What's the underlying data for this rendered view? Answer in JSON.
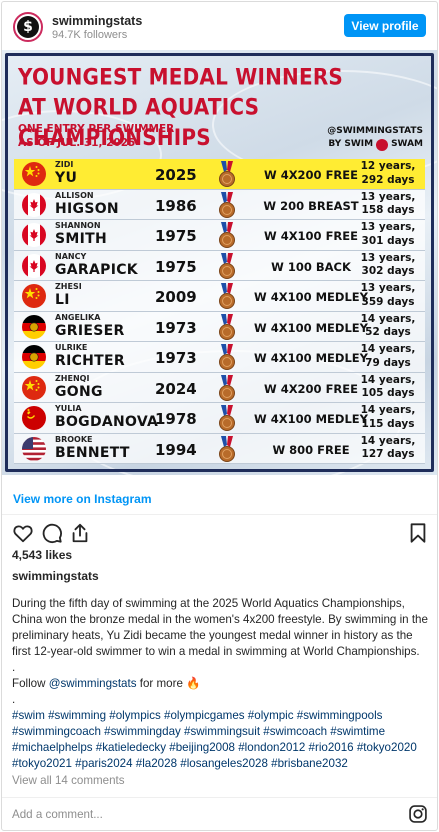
{
  "header": {
    "username": "swimmingstats",
    "followers": "94.7K followers",
    "view_profile": "View profile",
    "avatar_letter": "$"
  },
  "infographic": {
    "title_line1": "YOUNGEST MEDAL WINNERS",
    "title_line2": "AT WORLD AQUATICS CHAMPIONSHIPS",
    "subtitle_line1": "ONE ENTRY PER SWIMMER",
    "subtitle_line2": "AS OF JUL. 31, 2025",
    "brand_handle": "@SWIMMINGSTATS",
    "brand_by": "BY SWIM",
    "brand_swam": "SWAM",
    "rows": [
      {
        "first": "ZIDI",
        "last": "YU",
        "year": "2025",
        "event": "W 4X200 FREE",
        "age1": "12 years,",
        "age2": "292 days",
        "flag": "china",
        "highlight": true
      },
      {
        "first": "ALLISON",
        "last": "HIGSON",
        "year": "1986",
        "event": "W 200 BREAST",
        "age1": "13 years,",
        "age2": "158 days",
        "flag": "canada",
        "highlight": false
      },
      {
        "first": "SHANNON",
        "last": "SMITH",
        "year": "1975",
        "event": "W 4X100 FREE",
        "age1": "13 years,",
        "age2": "301 days",
        "flag": "canada",
        "highlight": false
      },
      {
        "first": "NANCY",
        "last": "GARAPICK",
        "year": "1975",
        "event": "W 100 BACK",
        "age1": "13 years,",
        "age2": "302 days",
        "flag": "canada",
        "highlight": false
      },
      {
        "first": "ZHESI",
        "last": "LI",
        "year": "2009",
        "event": "W 4X100 MEDLEY",
        "age1": "13 years,",
        "age2": "359 days",
        "flag": "china",
        "highlight": false
      },
      {
        "first": "ANGELIKA",
        "last": "GRIESER",
        "year": "1973",
        "event": "W 4X100 MEDLEY",
        "age1": "14 years,",
        "age2": "52 days",
        "flag": "east-germany",
        "highlight": false
      },
      {
        "first": "ULRIKE",
        "last": "RICHTER",
        "year": "1973",
        "event": "W 4X100 MEDLEY",
        "age1": "14 years,",
        "age2": "79 days",
        "flag": "east-germany",
        "highlight": false
      },
      {
        "first": "ZHENQI",
        "last": "GONG",
        "year": "2024",
        "event": "W 4X200 FREE",
        "age1": "14 years,",
        "age2": "105 days",
        "flag": "china",
        "highlight": false
      },
      {
        "first": "YULIA",
        "last": "BOGDANOVA",
        "year": "1978",
        "event": "W 4X100 MEDLEY",
        "age1": "14 years,",
        "age2": "115 days",
        "flag": "ussr",
        "highlight": false
      },
      {
        "first": "BROOKE",
        "last": "BENNETT",
        "year": "1994",
        "event": "W 800 FREE",
        "age1": "14 years,",
        "age2": "127 days",
        "flag": "usa",
        "highlight": false
      }
    ]
  },
  "post": {
    "view_more": "View more on Instagram",
    "likes": "4,543 likes",
    "author": "swimmingstats",
    "caption_main": "During the fifth day of swimming at the 2025 World Aquatics Championships, China won the bronze medal in the women's 4x200 freestyle. By swimming in the preliminary heats, Yu Zidi became the youngest medal winner in history as the first 12-year-old swimmer to win a medal in swimming at World Championships.",
    "dot1": ".",
    "follow_prefix": "Follow ",
    "follow_handle": "@swimmingstats",
    "follow_suffix": " for more 🔥",
    "dot2": ".",
    "hashtags": "#swim #swimming #olympics #olympicgames #olympic #swimmingpools #swimmingcoach #swimmingday #swimmingsuit #swimcoach #swimtime #michaelphelps #katieledecky #beijing2008 #london2012 #rio2016 #tokyo2020 #tokyo2021 #paris2024 #la2028 #losangeles2028 #brisbane2032",
    "view_comments": "View all 14 comments",
    "add_comment": "Add a comment..."
  },
  "icons": [
    "heart-icon",
    "comment-icon",
    "share-icon",
    "bookmark-icon",
    "instagram-icon"
  ],
  "colors": {
    "accent": "#0095f6",
    "title_red": "#c8102e",
    "highlight": "#ffec33",
    "link": "#00376b"
  }
}
